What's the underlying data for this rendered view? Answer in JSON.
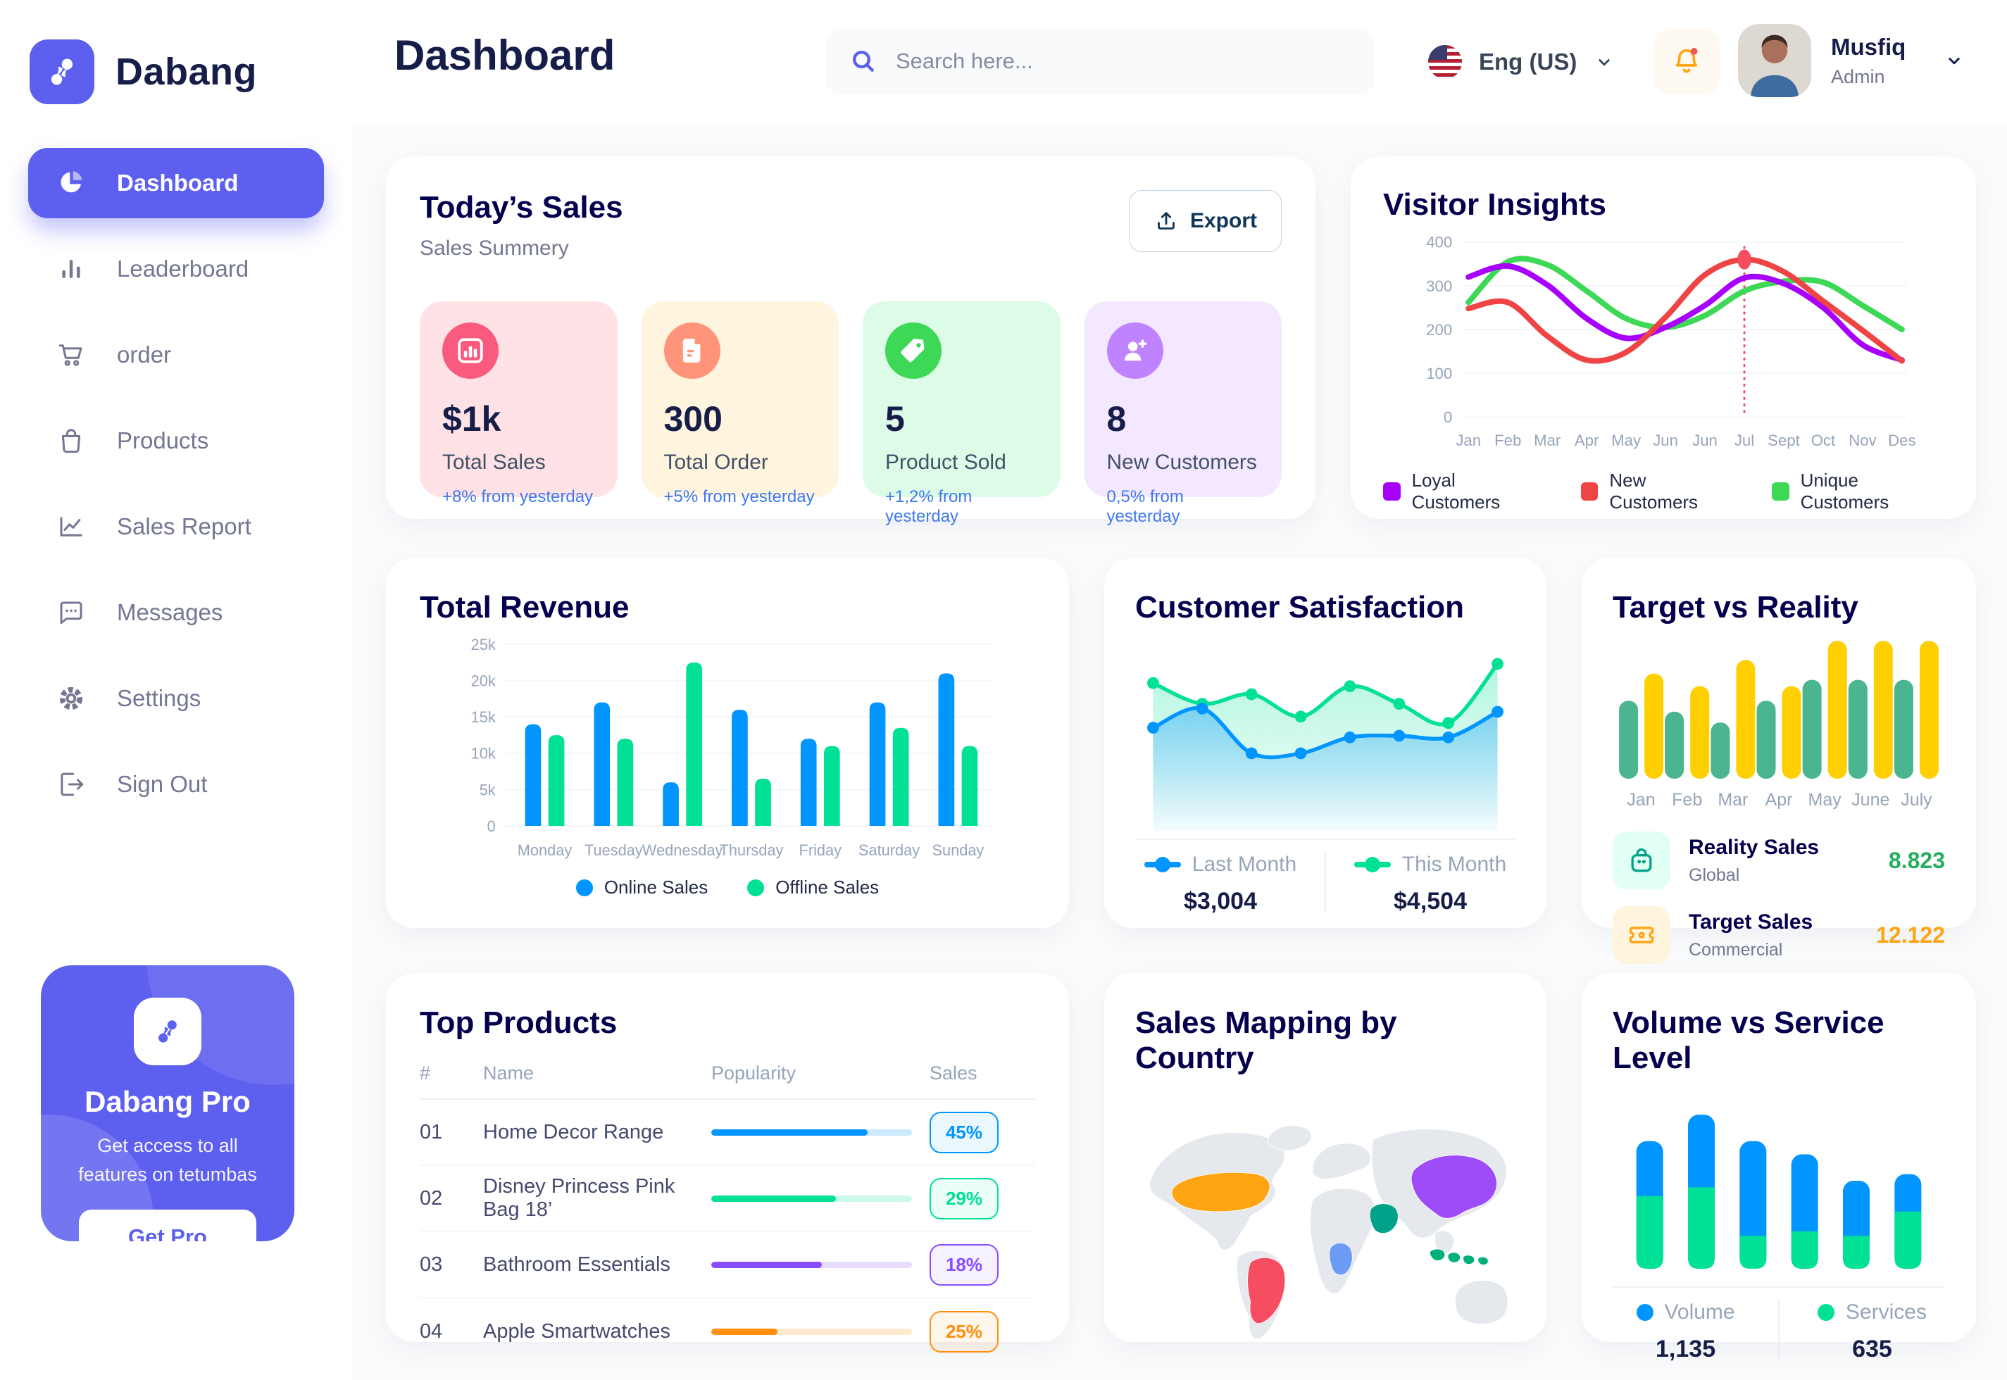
{
  "app": {
    "brand": "Dabang",
    "page_title": "Dashboard"
  },
  "header": {
    "search_placeholder": "Search here...",
    "language": "Eng (US)",
    "user": {
      "name": "Musfiq",
      "role": "Admin"
    }
  },
  "sidebar": {
    "items": [
      {
        "label": "Dashboard",
        "icon": "pie-chart-icon",
        "active": true
      },
      {
        "label": "Leaderboard",
        "icon": "bar-chart-icon",
        "active": false
      },
      {
        "label": "order",
        "icon": "cart-icon",
        "active": false
      },
      {
        "label": "Products",
        "icon": "bag-icon",
        "active": false
      },
      {
        "label": "Sales Report",
        "icon": "line-chart-icon",
        "active": false
      },
      {
        "label": "Messages",
        "icon": "message-icon",
        "active": false
      },
      {
        "label": "Settings",
        "icon": "gear-icon",
        "active": false
      },
      {
        "label": "Sign Out",
        "icon": "sign-out-icon",
        "active": false
      }
    ],
    "promo": {
      "title": "Dabang Pro",
      "subtitle": "Get access to all features on tetumbas",
      "cta": "Get Pro"
    }
  },
  "today_sales": {
    "title": "Today’s Sales",
    "subtitle": "Sales Summery",
    "export_label": "Export",
    "stats": [
      {
        "value": "$1k",
        "label": "Total Sales",
        "delta": "+8% from yesterday",
        "card_bg": "#FFE2E5",
        "icon_bg": "#FA5A7D",
        "icon": "sales-chart-icon"
      },
      {
        "value": "300",
        "label": "Total Order",
        "delta": "+5% from yesterday",
        "card_bg": "#FFF4DE",
        "icon_bg": "#FF947A",
        "icon": "order-doc-icon"
      },
      {
        "value": "5",
        "label": "Product Sold",
        "delta": "+1,2% from yesterday",
        "card_bg": "#DCFCE7",
        "icon_bg": "#3CD856",
        "icon": "tag-icon"
      },
      {
        "value": "8",
        "label": "New Customers",
        "delta": "0,5% from yesterday",
        "card_bg": "#F3E8FF",
        "icon_bg": "#BF83FF",
        "icon": "user-plus-icon"
      }
    ]
  },
  "visitor_insights": {
    "title": "Visitor Insights",
    "chart": {
      "type": "line",
      "x_labels": [
        "Jan",
        "Feb",
        "Mar",
        "Apr",
        "May",
        "Jun",
        "Jun",
        "Jul",
        "Sept",
        "Oct",
        "Nov",
        "Des"
      ],
      "y_ticks": [
        0,
        100,
        200,
        300,
        400
      ],
      "y_max": 400,
      "series": [
        {
          "name": "Loyal Customers",
          "color": "#A700FF",
          "values": [
            320,
            345,
            302,
            225,
            180,
            205,
            255,
            318,
            305,
            250,
            165,
            130
          ]
        },
        {
          "name": "New Customers",
          "color": "#EF4444",
          "values": [
            248,
            262,
            185,
            130,
            148,
            228,
            325,
            360,
            332,
            265,
            198,
            128
          ]
        },
        {
          "name": "Unique Customers",
          "color": "#3CD856",
          "values": [
            262,
            355,
            348,
            288,
            225,
            205,
            232,
            288,
            310,
            308,
            255,
            200
          ]
        }
      ],
      "highlight": {
        "x_index": 7,
        "series": "New Customers",
        "color": "#F64E60"
      }
    }
  },
  "total_revenue": {
    "title": "Total Revenue",
    "chart": {
      "type": "bar",
      "categories": [
        "Monday",
        "Tuesday",
        "Wednesday",
        "Thursday",
        "Friday",
        "Saturday",
        "Sunday"
      ],
      "y_ticks": [
        "0",
        "5k",
        "10k",
        "15k",
        "20k",
        "25k"
      ],
      "y_max": 25,
      "series": [
        {
          "name": "Online Sales",
          "color": "#0095FF",
          "values": [
            14,
            17,
            6,
            16,
            12,
            17,
            21
          ]
        },
        {
          "name": "Offline Sales",
          "color": "#00E096",
          "values": [
            12.5,
            12,
            22.5,
            6.5,
            11,
            13.5,
            11
          ]
        }
      ]
    }
  },
  "customer_satisfaction": {
    "title": "Customer Satisfaction",
    "chart": {
      "type": "area",
      "series": [
        {
          "name": "Last Month",
          "color": "#0095FF",
          "total": "$3,004",
          "values": [
            48,
            60,
            32,
            32,
            42,
            43,
            42,
            58
          ]
        },
        {
          "name": "This Month",
          "color": "#00E096",
          "total": "$4,504",
          "values": [
            76,
            63,
            69,
            55,
            74,
            63,
            51,
            88
          ]
        }
      ]
    }
  },
  "target_vs_reality": {
    "title": "Target vs Reality",
    "chart": {
      "type": "bar",
      "categories": [
        "Jan",
        "Feb",
        "Mar",
        "Apr",
        "May",
        "June",
        "July"
      ],
      "y_max": 16,
      "series": [
        {
          "name": "Reality Sales",
          "color": "#4AB58E",
          "values": [
            8.6,
            7.4,
            6.2,
            8.6,
            10.9,
            10.9,
            10.9
          ]
        },
        {
          "name": "Target Sales",
          "color": "#FFCF00",
          "values": [
            11.6,
            10.2,
            13.1,
            10.2,
            15.2,
            15.2,
            15.2
          ]
        }
      ]
    },
    "legend": [
      {
        "title": "Reality Sales",
        "subtitle": "Global",
        "value": "8.823",
        "value_color": "#27AE60",
        "icon": "bag-icon",
        "icon_bg": "#E2FFF3",
        "icon_color": "#00A389"
      },
      {
        "title": "Target Sales",
        "subtitle": "Commercial",
        "value": "12.122",
        "value_color": "#FFA412",
        "icon": "ticket-icon",
        "icon_bg": "#FFF4DE",
        "icon_color": "#FFA412"
      }
    ]
  },
  "top_products": {
    "title": "Top Products",
    "headers": [
      "#",
      "Name",
      "Popularity",
      "Sales"
    ],
    "rows": [
      {
        "rank": "01",
        "name": "Home Decor Range",
        "popularity": 78,
        "sales": "45%",
        "color": "#0095FF"
      },
      {
        "rank": "02",
        "name": "Disney Princess Pink Bag 18’",
        "popularity": 62,
        "sales": "29%",
        "color": "#00E096"
      },
      {
        "rank": "03",
        "name": "Bathroom Essentials",
        "popularity": 55,
        "sales": "18%",
        "color": "#884DFF"
      },
      {
        "rank": "04",
        "name": "Apple Smartwatches",
        "popularity": 33,
        "sales": "25%",
        "color": "#FF8F0D"
      }
    ]
  },
  "sales_mapping": {
    "title": "Sales Mapping by Country",
    "countries": [
      {
        "name": "United States",
        "color": "#FFA412"
      },
      {
        "name": "Brazil",
        "color": "#F64E60"
      },
      {
        "name": "Saudi Arabia",
        "color": "#00A389"
      },
      {
        "name": "DR Congo",
        "color": "#6E9BF5"
      },
      {
        "name": "China",
        "color": "#9E4CF7"
      },
      {
        "name": "Indonesia",
        "color": "#00B07C"
      }
    ]
  },
  "volume_service": {
    "title": "Volume vs Service Level",
    "chart": {
      "type": "stacked-bar",
      "series": [
        {
          "name": "Volume",
          "color": "#0095FF",
          "total": "1,135",
          "values": [
            25,
            33,
            43,
            35,
            25,
            17
          ]
        },
        {
          "name": "Services",
          "color": "#00E096",
          "total": "635",
          "values": [
            33,
            37,
            15,
            17,
            15,
            26
          ]
        }
      ]
    }
  }
}
